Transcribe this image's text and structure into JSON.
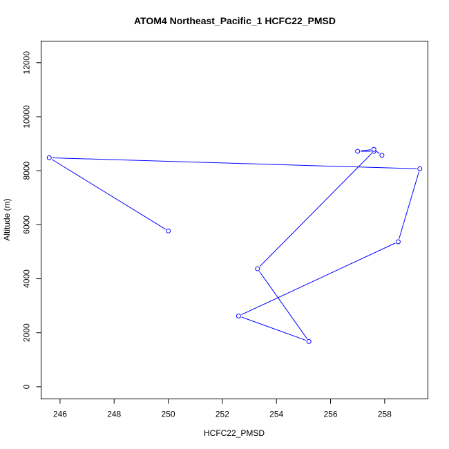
{
  "chart_data": {
    "type": "line",
    "title": "ATOM4 Northeast_Pacific_1 HCFC22_PMSD",
    "xlabel": "HCFC22_PMSD",
    "ylabel": "Altitude (m)",
    "xlim": [
      245.3,
      259.6
    ],
    "ylim": [
      -450,
      12800
    ],
    "x_ticks": [
      246,
      248,
      250,
      252,
      254,
      256,
      258
    ],
    "y_ticks": [
      0,
      2000,
      4000,
      6000,
      8000,
      10000,
      12000
    ],
    "grid": false,
    "series": [
      {
        "color": "#0000ff",
        "marker": "open-circle",
        "x": [
          250.0,
          245.6,
          259.3,
          258.5,
          252.6,
          255.2,
          253.3,
          257.6,
          257.0,
          257.6,
          257.9
        ],
        "y": [
          5770,
          8480,
          8070,
          5370,
          2620,
          1680,
          4370,
          8720,
          8720,
          8790,
          8570
        ]
      }
    ]
  }
}
